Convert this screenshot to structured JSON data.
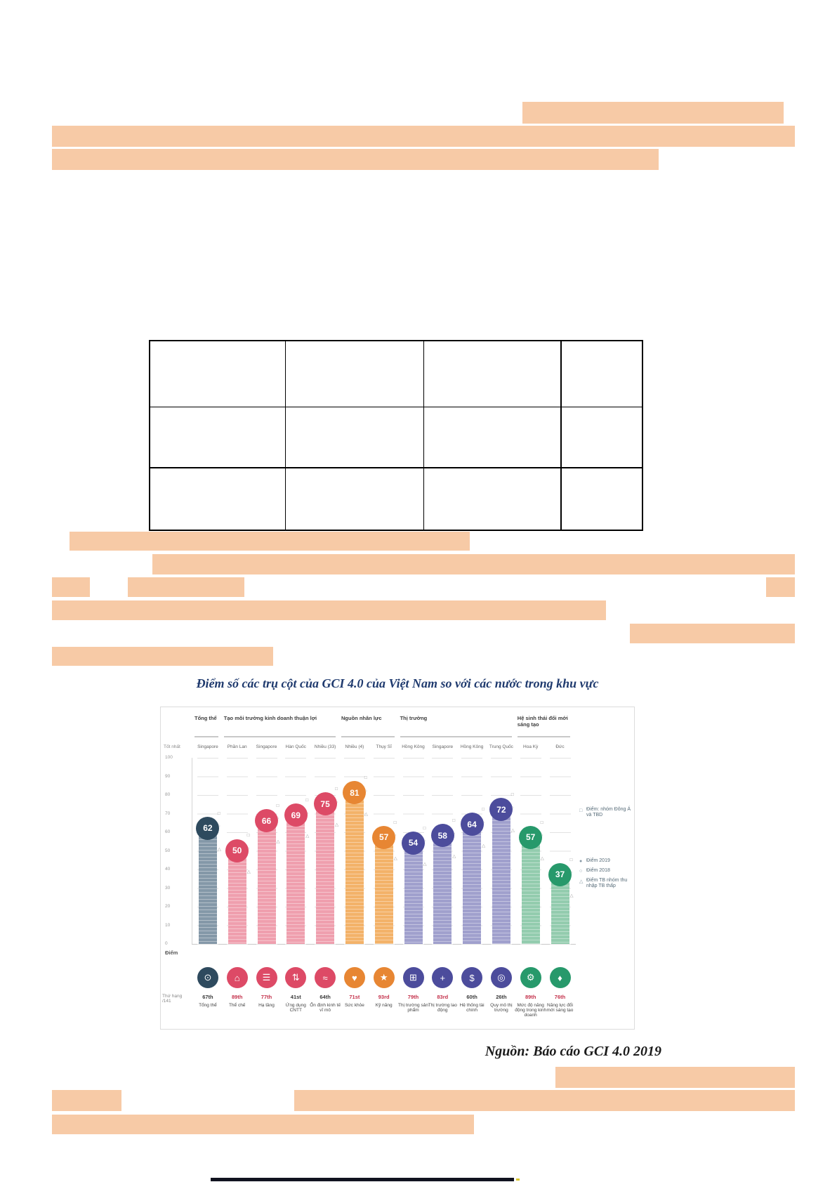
{
  "page": {
    "highlight_color": "#f7caa6"
  },
  "table": {
    "rows": 3,
    "columns": 4
  },
  "chart_data": {
    "type": "bar",
    "title": "Điểm số các trụ cột của GCI 4.0 của Việt Nam so với các nước trong khu vực",
    "source": "Nguồn: Báo cáo GCI 4.0 2019",
    "ylabel": "Điểm",
    "ylim": [
      0,
      100
    ],
    "yticks": [
      100,
      90,
      80,
      70,
      60,
      50,
      40,
      30,
      20,
      10,
      0
    ],
    "grid": true,
    "legend_position": "right",
    "row_labels": {
      "best": "Tốt nhất",
      "rank": "Thứ hạng /141"
    },
    "groups": [
      {
        "label": "Tổng thể",
        "span": 1
      },
      {
        "label": "Tạo môi trường kinh doanh thuận lợi",
        "span": 4
      },
      {
        "label": "Nguồn nhân lực",
        "span": 2
      },
      {
        "label": "Thị trường",
        "span": 4
      },
      {
        "label": "Hệ sinh thái đổi mới sáng tạo",
        "span": 2
      }
    ],
    "columns": [
      {
        "pillar": "Tổng thể",
        "best": "Singapore",
        "score": 62,
        "rank": "67th",
        "rank_tone": "dark",
        "group": "overall",
        "icon": "gauge-icon",
        "glyph": "⊙"
      },
      {
        "pillar": "Thể chế",
        "best": "Phần Lan",
        "score": 50,
        "rank": "89th",
        "rank_tone": "red",
        "group": "environment",
        "icon": "institutions-icon",
        "glyph": "⌂"
      },
      {
        "pillar": "Hạ tầng",
        "best": "Singapore",
        "score": 66,
        "rank": "77th",
        "rank_tone": "red",
        "group": "environment",
        "icon": "infrastructure-icon",
        "glyph": "☰"
      },
      {
        "pillar": "Ứng dụng CNTT",
        "best": "Hàn Quốc",
        "score": 69,
        "rank": "41st",
        "rank_tone": "dark",
        "group": "environment",
        "icon": "ict-adoption-icon",
        "glyph": "⇅"
      },
      {
        "pillar": "Ổn định kinh tế vĩ mô",
        "best": "Nhiều (33)",
        "score": 75,
        "rank": "64th",
        "rank_tone": "dark",
        "group": "environment",
        "icon": "macro-stability-icon",
        "glyph": "≈"
      },
      {
        "pillar": "Sức khỏe",
        "best": "Nhiều (4)",
        "score": 81,
        "rank": "71st",
        "rank_tone": "red",
        "group": "human",
        "icon": "health-icon",
        "glyph": "♥"
      },
      {
        "pillar": "Kỹ năng",
        "best": "Thụy Sĩ",
        "score": 57,
        "rank": "93rd",
        "rank_tone": "red",
        "group": "human",
        "icon": "skills-icon",
        "glyph": "★"
      },
      {
        "pillar": "Thị trường sản phẩm",
        "best": "Hồng Kông",
        "score": 54,
        "rank": "79th",
        "rank_tone": "red",
        "group": "market",
        "icon": "product-market-icon",
        "glyph": "⊞"
      },
      {
        "pillar": "Thị trường lao động",
        "best": "Singapore",
        "score": 58,
        "rank": "83rd",
        "rank_tone": "red",
        "group": "market",
        "icon": "labour-market-icon",
        "glyph": "+"
      },
      {
        "pillar": "Hệ thống tài chính",
        "best": "Hồng Kông",
        "score": 64,
        "rank": "60th",
        "rank_tone": "dark",
        "group": "market",
        "icon": "financial-system-icon",
        "glyph": "$"
      },
      {
        "pillar": "Quy mô thị trường",
        "best": "Trung Quốc",
        "score": 72,
        "rank": "26th",
        "rank_tone": "dark",
        "group": "market",
        "icon": "market-size-icon",
        "glyph": "◎"
      },
      {
        "pillar": "Mức độ năng động trong kinh doanh",
        "best": "Hoa Kỳ",
        "score": 57,
        "rank": "89th",
        "rank_tone": "red",
        "group": "ecosystem",
        "icon": "business-dynamism-icon",
        "glyph": "⚙"
      },
      {
        "pillar": "Năng lực đổi mới sáng tạo",
        "best": "Đức",
        "score": 37,
        "rank": "76th",
        "rank_tone": "red",
        "group": "ecosystem",
        "icon": "innovation-icon",
        "glyph": "♦"
      }
    ],
    "legend": [
      "Điểm: nhóm Đông Á và TBD",
      "Điểm 2019",
      "Điểm 2018",
      "Điểm TB nhóm thu nhập TB thấp"
    ],
    "group_colors": {
      "overall": {
        "bar": "#8498a8",
        "circle": "#2e4a5e"
      },
      "environment": {
        "bar": "#ef9fae",
        "circle": "#dd4a66"
      },
      "human": {
        "bar": "#f3b269",
        "circle": "#e78633"
      },
      "market": {
        "bar": "#a0a0cd",
        "circle": "#4c4c9c"
      },
      "ecosystem": {
        "bar": "#93ccae",
        "circle": "#27996b"
      }
    },
    "rank_colors": {
      "dark": "#3a3a3a",
      "red": "#c4314b"
    }
  }
}
